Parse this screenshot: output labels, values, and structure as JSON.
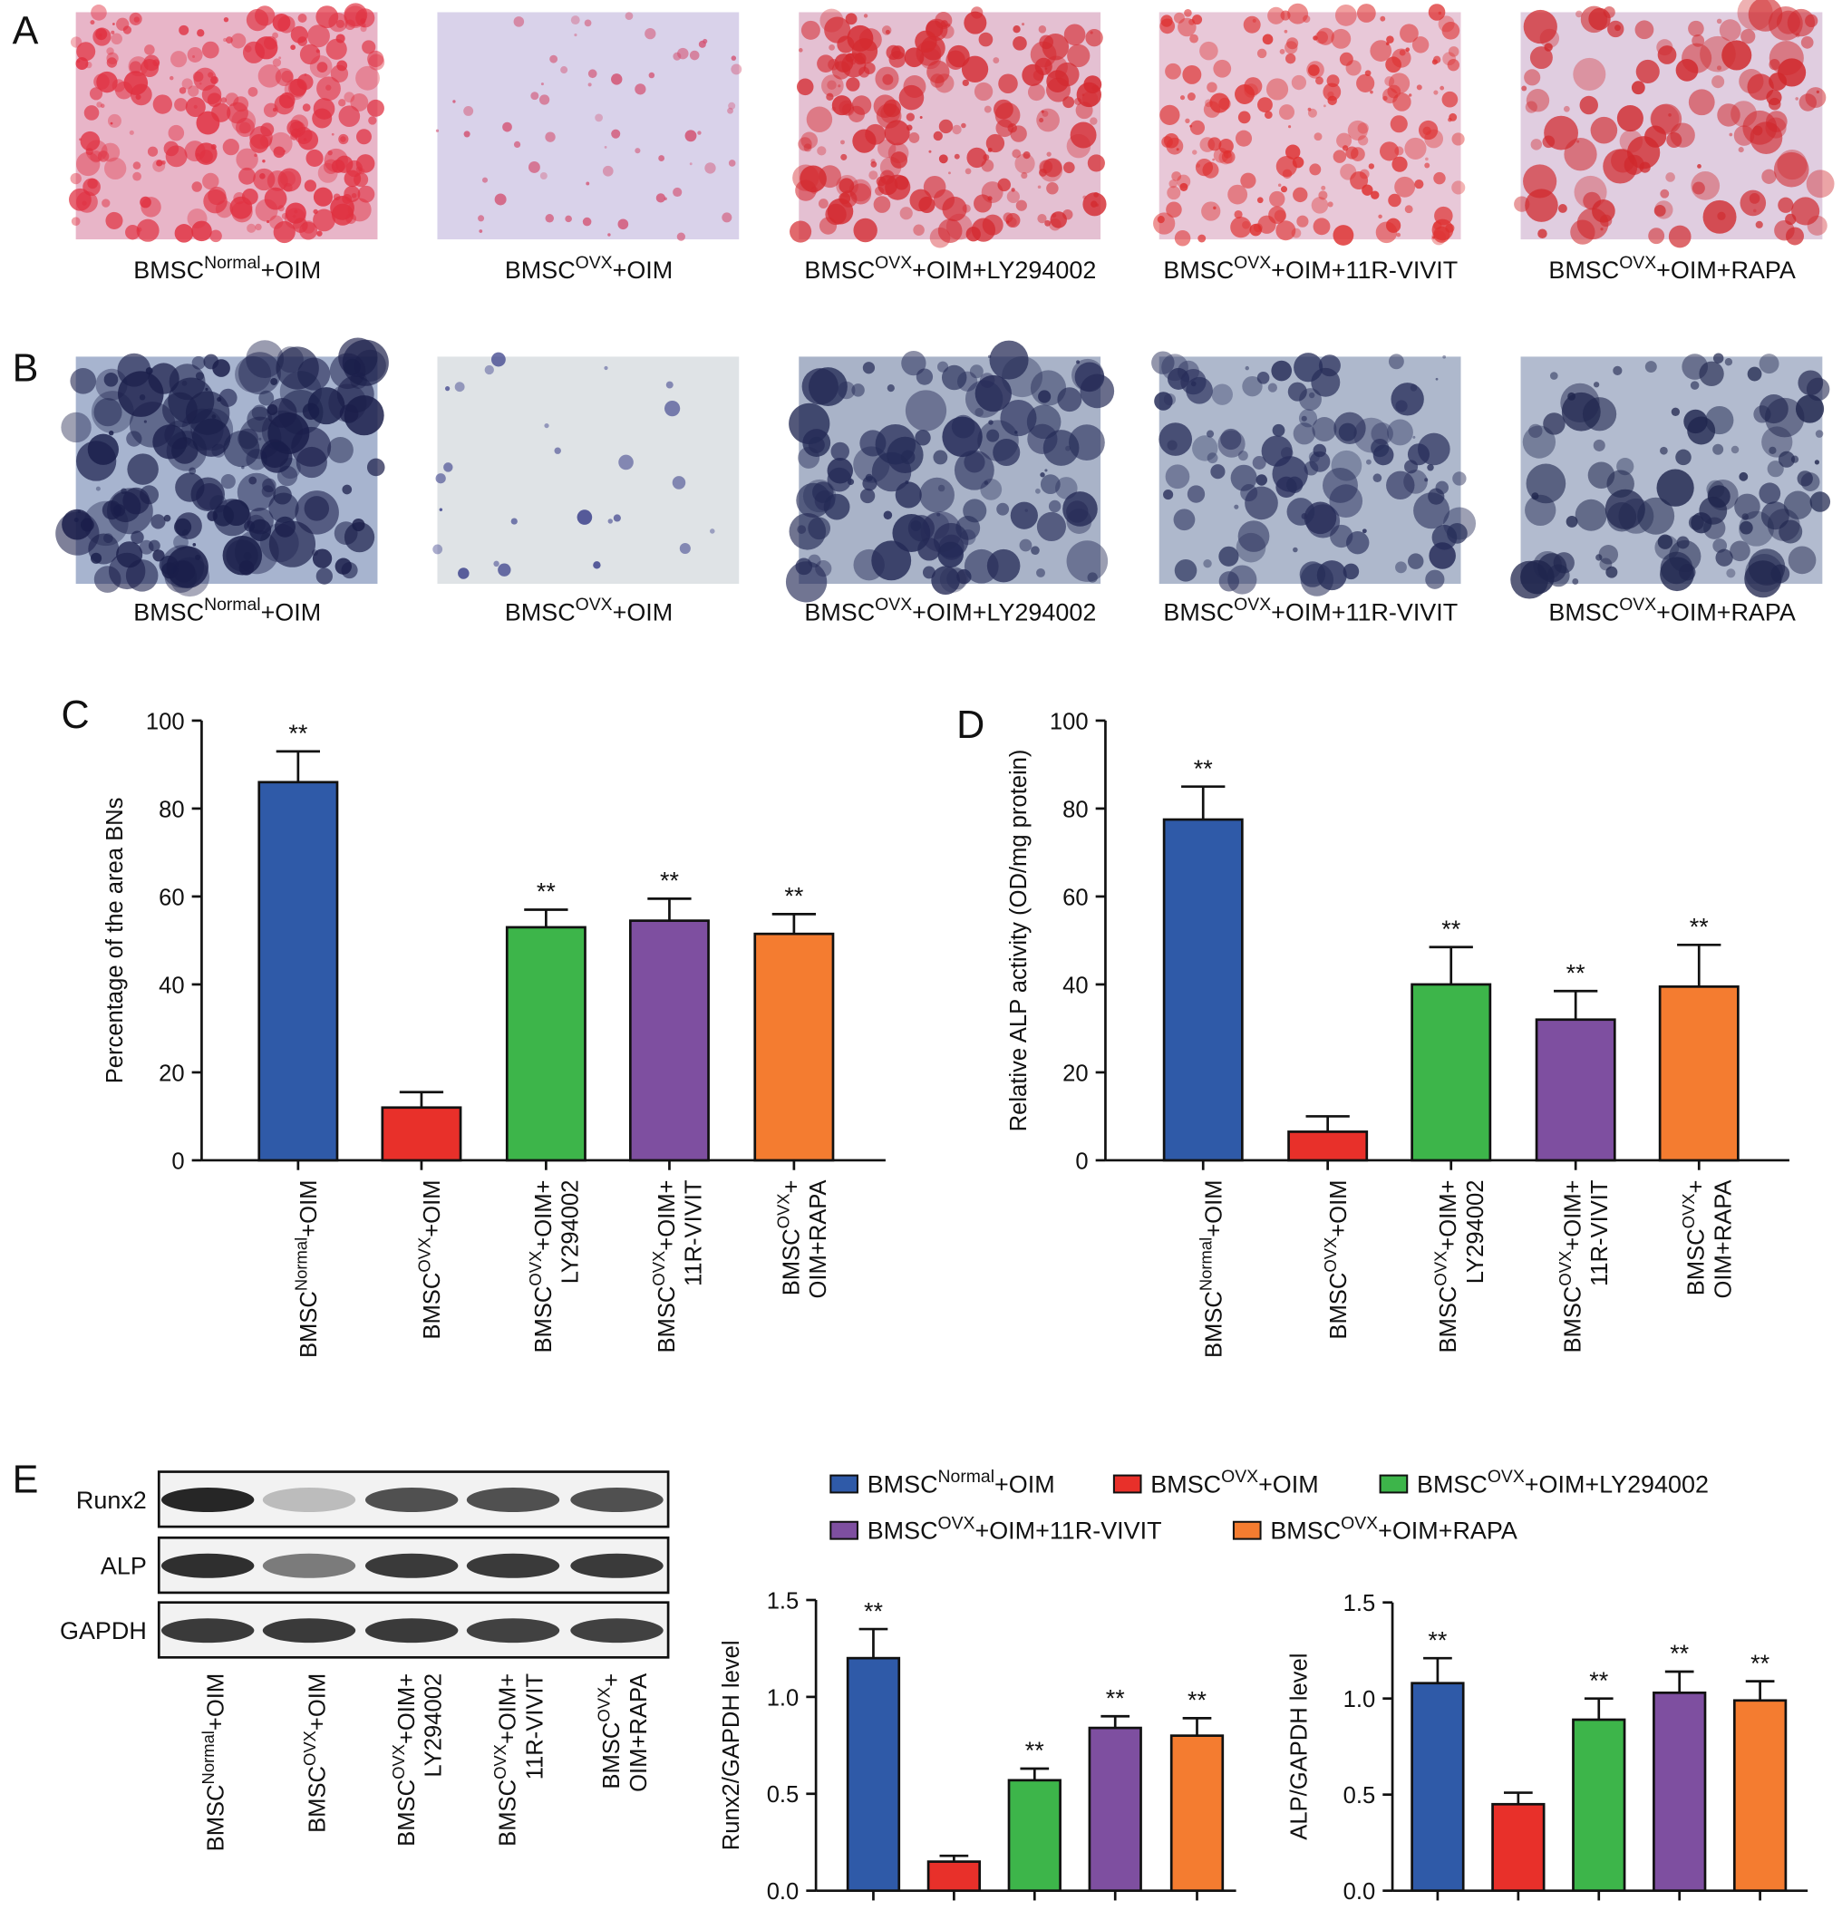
{
  "panel_letters": [
    "A",
    "B",
    "C",
    "D",
    "E"
  ],
  "stain_panels": [
    {
      "labels": [
        {
          "base": "BMSC",
          "sup": "Normal",
          "rest": "+OIM"
        },
        {
          "base": "BMSC",
          "sup": "OVX",
          "rest": "+OIM"
        },
        {
          "base": "BMSC",
          "sup": "OVX",
          "rest": "+OIM+LY294002"
        },
        {
          "base": "BMSC",
          "sup": "OVX",
          "rest": "+OIM+11R-VIVIT"
        },
        {
          "base": "BMSC",
          "sup": "OVX",
          "rest": "+OIM+RAPA"
        }
      ]
    },
    {
      "labels": [
        {
          "base": "BMSC",
          "sup": "Normal",
          "rest": "+OIM"
        },
        {
          "base": "BMSC",
          "sup": "OVX",
          "rest": "+OIM"
        },
        {
          "base": "BMSC",
          "sup": "OVX",
          "rest": "+OIM+LY294002"
        },
        {
          "base": "BMSC",
          "sup": "OVX",
          "rest": "+OIM+11R-VIVIT"
        },
        {
          "base": "BMSC",
          "sup": "OVX",
          "rest": "+OIM+RAPA"
        }
      ]
    }
  ],
  "chart_data": [
    {
      "type": "bar",
      "ylabel": "Percentage of the area BNs",
      "categories": [
        {
          "base": "BMSC",
          "sup": "Normal",
          "rest": "+OIM"
        },
        {
          "base": "BMSC",
          "sup": "OVX",
          "rest": "+OIM"
        },
        {
          "base": "BMSC",
          "sup": "OVX",
          "rest": "+OIM+",
          "line2": "LY294002"
        },
        {
          "base": "BMSC",
          "sup": "OVX",
          "rest": "+OIM+",
          "line2": "11R-VIVIT"
        },
        {
          "base": "BMSC",
          "sup": "OVX",
          "rest": "+",
          "line2": "OIM+RAPA"
        }
      ],
      "values": [
        86,
        12,
        53,
        54.5,
        51.5
      ],
      "errors": [
        7,
        3.5,
        4,
        5,
        4.5
      ],
      "annotations": [
        "**",
        null,
        "**",
        "**",
        "**"
      ],
      "colors": [
        "#2f5aa8",
        "#e8302a",
        "#3db54a",
        "#7e4fa0",
        "#f47c30"
      ],
      "ylim": [
        0,
        100
      ],
      "yticks": [
        0,
        20,
        40,
        60,
        80,
        100
      ]
    },
    {
      "type": "bar",
      "ylabel": "Relative ALP activity (OD/mg protein)",
      "categories": [
        {
          "base": "BMSC",
          "sup": "Normal",
          "rest": "+OIM"
        },
        {
          "base": "BMSC",
          "sup": "OVX",
          "rest": "+OIM"
        },
        {
          "base": "BMSC",
          "sup": "OVX",
          "rest": "+OIM+",
          "line2": "LY294002"
        },
        {
          "base": "BMSC",
          "sup": "OVX",
          "rest": "+OIM+",
          "line2": "11R-VIVIT"
        },
        {
          "base": "BMSC",
          "sup": "OVX",
          "rest": "+",
          "line2": "OIM+RAPA"
        }
      ],
      "values": [
        77.5,
        6.5,
        40,
        32,
        39.5
      ],
      "errors": [
        7.5,
        3.5,
        8.5,
        6.5,
        9.5
      ],
      "annotations": [
        "**",
        null,
        "**",
        "**",
        "**"
      ],
      "colors": [
        "#2f5aa8",
        "#e8302a",
        "#3db54a",
        "#7e4fa0",
        "#f47c30"
      ],
      "ylim": [
        0,
        100
      ],
      "yticks": [
        0,
        20,
        40,
        60,
        80,
        100
      ]
    },
    {
      "type": "bar",
      "ylabel": "Runx2/GAPDH level",
      "values": [
        1.2,
        0.15,
        0.57,
        0.84,
        0.8
      ],
      "errors": [
        0.15,
        0.03,
        0.06,
        0.06,
        0.09
      ],
      "annotations": [
        "**",
        null,
        "**",
        "**",
        "**"
      ],
      "colors": [
        "#2f5aa8",
        "#e8302a",
        "#3db54a",
        "#7e4fa0",
        "#f47c30"
      ],
      "ylim": [
        0,
        1.5
      ],
      "yticks": [
        {
          "value": 0,
          "label": "0.0"
        },
        0.5,
        {
          "value": 1,
          "label": "1.0"
        },
        1.5
      ]
    },
    {
      "type": "bar",
      "ylabel": "ALP/GAPDH level",
      "values": [
        1.08,
        0.45,
        0.89,
        1.03,
        0.99
      ],
      "errors": [
        0.13,
        0.06,
        0.11,
        0.11,
        0.1
      ],
      "annotations": [
        "**",
        null,
        "**",
        "**",
        "**"
      ],
      "colors": [
        "#2f5aa8",
        "#e8302a",
        "#3db54a",
        "#7e4fa0",
        "#f47c30"
      ],
      "ylim": [
        0,
        1.5
      ],
      "yticks": [
        {
          "value": 0,
          "label": "0.0"
        },
        0.5,
        {
          "value": 1,
          "label": "1.0"
        },
        1.5
      ]
    }
  ],
  "blot": {
    "rows": [
      "Runx2",
      "ALP",
      "GAPDH"
    ],
    "categories": [
      {
        "base": "BMSC",
        "sup": "Normal",
        "rest": "+OIM"
      },
      {
        "base": "BMSC",
        "sup": "OVX",
        "rest": "+OIM"
      },
      {
        "base": "BMSC",
        "sup": "OVX",
        "rest": "+OIM+",
        "line2": "LY294002"
      },
      {
        "base": "BMSC",
        "sup": "OVX",
        "rest": "+OIM+",
        "line2": "11R-VIVIT"
      },
      {
        "base": "BMSC",
        "sup": "OVX",
        "rest": "+",
        "line2": "OIM+RAPA"
      }
    ]
  },
  "legend": [
    {
      "base": "BMSC",
      "sup": "Normal",
      "rest": "+OIM",
      "color": "#2f5aa8"
    },
    {
      "base": "BMSC",
      "sup": "OVX",
      "rest": "+OIM",
      "color": "#e8302a"
    },
    {
      "base": "BMSC",
      "sup": "OVX",
      "rest": "+OIM+LY294002",
      "color": "#3db54a"
    },
    {
      "base": "BMSC",
      "sup": "OVX",
      "rest": "+OIM+11R-VIVIT",
      "color": "#7e4fa0"
    },
    {
      "base": "BMSC",
      "sup": "OVX",
      "rest": "+OIM+RAPA",
      "color": "#f47c30"
    }
  ]
}
